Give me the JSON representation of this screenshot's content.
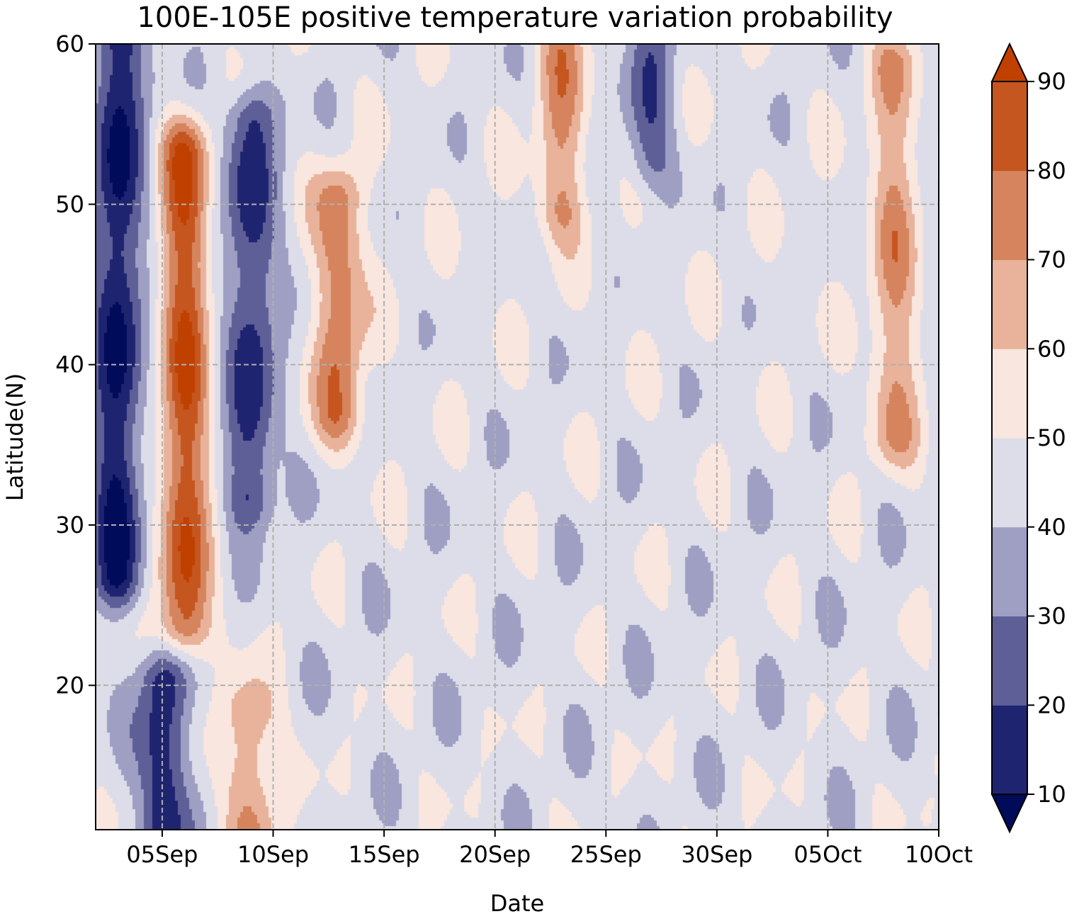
{
  "chart_data": {
    "type": "heatmap",
    "subtype": "filled-contour",
    "title": "100E-105E positive temperature variation probability",
    "xlabel": "Date",
    "ylabel": "Latitude(N)",
    "x_axis": {
      "kind": "date",
      "range": [
        "2018-09-02",
        "2018-10-10"
      ],
      "ticks": [
        "05Sep",
        "10Sep",
        "15Sep",
        "20Sep",
        "25Sep",
        "30Sep",
        "05Oct",
        "10Oct"
      ]
    },
    "y_axis": {
      "range": [
        11,
        60
      ],
      "ticks": [
        20,
        30,
        40,
        50,
        60
      ]
    },
    "grid": true,
    "colorbar": {
      "levels": [
        10,
        20,
        30,
        40,
        50,
        60,
        70,
        80,
        90
      ],
      "extend": "both",
      "colors": [
        "#000b5a",
        "#1f2470",
        "#5f5f98",
        "#9e9fc3",
        "#dcdde9",
        "#f8e6df",
        "#e8b39a",
        "#d5845e",
        "#c5561f",
        "#c04000"
      ]
    },
    "features": [
      {
        "value": 8,
        "date": "2018-09-03",
        "lat_range": [
          27,
          60
        ],
        "description": "low-probability band"
      },
      {
        "value": 88,
        "date": "2018-09-06",
        "lat_range": [
          24,
          53
        ],
        "description": "high-probability band"
      },
      {
        "value": 15,
        "date": "2018-09-09",
        "lat_range": [
          32,
          55
        ],
        "description": "low-probability band"
      },
      {
        "value": 78,
        "date": "2018-09-13",
        "lat_range": [
          37,
          50
        ],
        "description": "high-probability band"
      },
      {
        "value": 12,
        "date": "2018-09-05",
        "lat_range": [
          11,
          20
        ],
        "description": "low-probability band"
      },
      {
        "value": 72,
        "date": "2018-09-09",
        "lat_range": [
          11,
          18
        ],
        "description": "high-probability band"
      },
      {
        "value": 25,
        "date": "2018-09-27",
        "lat_range": [
          53,
          60
        ],
        "description": "low-probability band"
      },
      {
        "value": 72,
        "date": "2018-09-23",
        "lat_range": [
          50,
          60
        ],
        "description": "high-probability band"
      },
      {
        "value": 70,
        "date": "2018-10-08",
        "lat_range": [
          36,
          58
        ],
        "description": "high-probability band"
      }
    ]
  }
}
